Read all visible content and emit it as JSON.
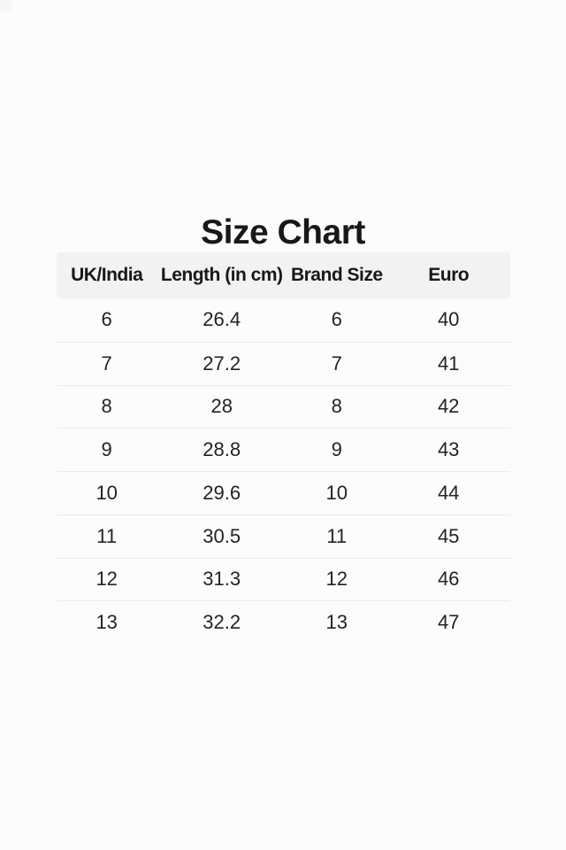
{
  "page": {
    "title": "Size Chart"
  },
  "table": {
    "headers": [
      "UK/India",
      "Length (in cm)",
      "Brand Size",
      "Euro"
    ],
    "rows": [
      [
        "6",
        "26.4",
        "6",
        "40"
      ],
      [
        "7",
        "27.2",
        "7",
        "41"
      ],
      [
        "8",
        "28",
        "8",
        "42"
      ],
      [
        "9",
        "28.8",
        "9",
        "43"
      ],
      [
        "10",
        "29.6",
        "10",
        "44"
      ],
      [
        "11",
        "30.5",
        "11",
        "45"
      ],
      [
        "12",
        "31.3",
        "12",
        "46"
      ],
      [
        "13",
        "32.2",
        "13",
        "47"
      ]
    ]
  },
  "chart_data": {
    "type": "table",
    "title": "Size Chart",
    "columns": [
      "UK/India",
      "Length (in cm)",
      "Brand Size",
      "Euro"
    ],
    "rows": [
      [
        "6",
        "26.4",
        "6",
        "40"
      ],
      [
        "7",
        "27.2",
        "7",
        "41"
      ],
      [
        "8",
        "28",
        "8",
        "42"
      ],
      [
        "9",
        "28.8",
        "9",
        "43"
      ],
      [
        "10",
        "29.6",
        "10",
        "44"
      ],
      [
        "11",
        "30.5",
        "11",
        "45"
      ],
      [
        "12",
        "31.3",
        "12",
        "46"
      ],
      [
        "13",
        "32.2",
        "13",
        "47"
      ]
    ]
  },
  "colors": {
    "page_background": "#fcfcfc",
    "header_background": "#f2f2f2",
    "divider": "#ebebeb",
    "text": "#17181a"
  }
}
